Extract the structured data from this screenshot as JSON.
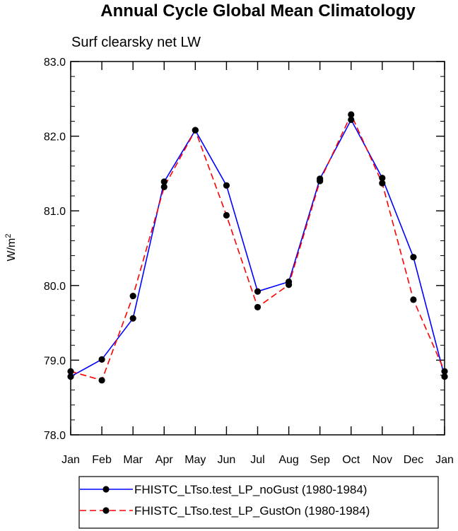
{
  "chart_data": {
    "type": "line",
    "title": "Annual Cycle Global Mean Climatology",
    "subtitle": "Surf clearsky net LW",
    "ylabel": "W/m",
    "ylabel_sup": "2",
    "xlabel": "",
    "categories": [
      "Jan",
      "Feb",
      "Mar",
      "Apr",
      "May",
      "Jun",
      "Jul",
      "Aug",
      "Sep",
      "Oct",
      "Nov",
      "Dec",
      "Jan"
    ],
    "ylim": [
      78.0,
      83.0
    ],
    "yticks": [
      78.0,
      79.0,
      80.0,
      81.0,
      82.0,
      83.0
    ],
    "ytick_labels": [
      "78.0",
      "79.0",
      "80.0",
      "81.0",
      "82.0",
      "83.0"
    ],
    "series": [
      {
        "name": "FHISTC_LTso.test_LP_noGust (1980-1984)",
        "color": "#0000ff",
        "dash": "solid",
        "values": [
          78.78,
          79.01,
          79.56,
          81.39,
          82.08,
          81.34,
          79.92,
          80.05,
          81.43,
          82.22,
          81.44,
          80.38,
          78.78
        ]
      },
      {
        "name": "FHISTC_LTso.test_LP_GustOn (1980-1984)",
        "color": "#ff0000",
        "dash": "dashed",
        "values": [
          78.85,
          78.73,
          79.86,
          81.32,
          82.08,
          80.94,
          79.71,
          80.01,
          81.4,
          82.29,
          81.37,
          79.81,
          78.85
        ]
      }
    ],
    "legend_position": "bottom"
  }
}
